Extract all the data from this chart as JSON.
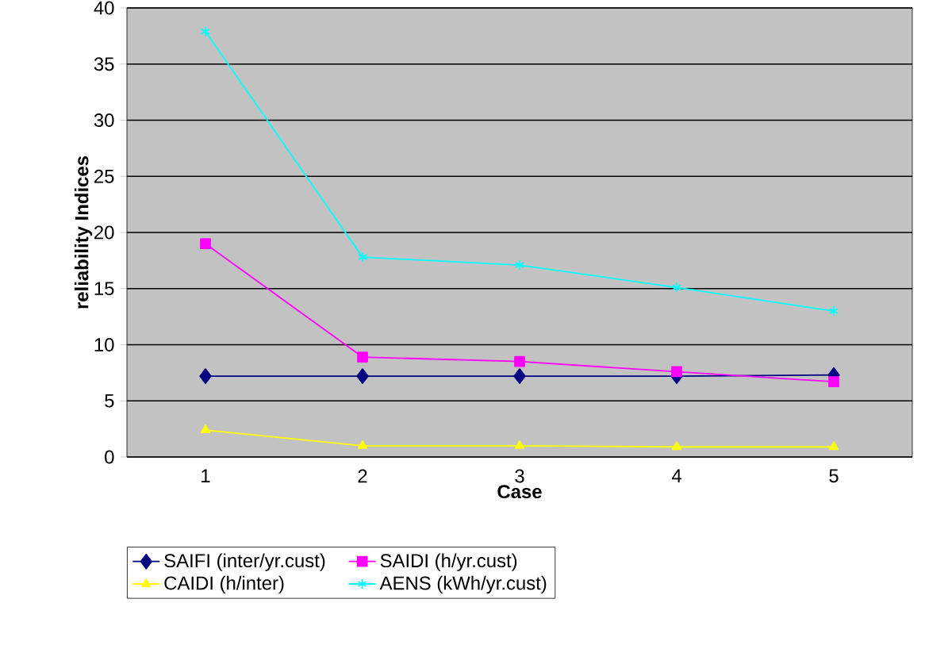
{
  "chart_data": {
    "type": "line",
    "xlabel": "Case",
    "ylabel": "reliability Indices",
    "categories": [
      "1",
      "2",
      "3",
      "4",
      "5"
    ],
    "ylim": [
      0,
      40
    ],
    "yticks": [
      0,
      5,
      10,
      15,
      20,
      25,
      30,
      35,
      40
    ],
    "grid": "y",
    "legend": "bottom left",
    "series": [
      {
        "name": "SAIFI (inter/yr.cust)",
        "color": "#000080",
        "marker": "diamond",
        "values": [
          7.2,
          7.2,
          7.2,
          7.2,
          7.3
        ]
      },
      {
        "name": "SAIDI (h/yr.cust)",
        "color": "#ff00ff",
        "marker": "square",
        "values": [
          19.0,
          8.9,
          8.5,
          7.6,
          6.7
        ]
      },
      {
        "name": "CAIDI (h/inter)",
        "color": "#ffff00",
        "marker": "triangle",
        "values": [
          2.4,
          1.0,
          1.0,
          0.9,
          0.9
        ]
      },
      {
        "name": "AENS (kWh/yr.cust)",
        "color": "#00ffff",
        "marker": "cross",
        "values": [
          37.9,
          17.8,
          17.1,
          15.1,
          13.0
        ]
      }
    ]
  }
}
